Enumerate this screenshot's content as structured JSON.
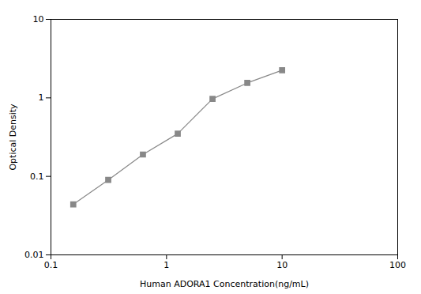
{
  "chart_data": {
    "type": "line",
    "x": [
      0.156,
      0.313,
      0.625,
      1.25,
      2.5,
      5.0,
      10.0
    ],
    "values": [
      0.044,
      0.09,
      0.19,
      0.35,
      0.97,
      1.55,
      2.25
    ],
    "xlabel": "Human ADORA1 Concentration(ng/mL)",
    "ylabel": "Optical Density",
    "xlim": [
      0.1,
      100
    ],
    "ylim": [
      0.01,
      10
    ],
    "xticks": [
      0.1,
      1,
      10,
      100
    ],
    "yticks": [
      0.01,
      0.1,
      1,
      10
    ],
    "log": true,
    "grid": false,
    "marker": "square",
    "color": "#888888"
  }
}
